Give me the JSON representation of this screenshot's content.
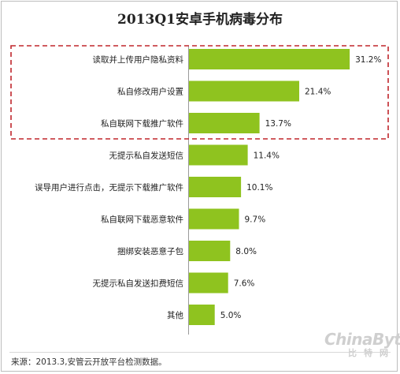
{
  "chart_data": {
    "type": "bar",
    "orientation": "horizontal",
    "title": "2013Q1安卓手机病毒分布",
    "categories": [
      "读取并上传用户隐私资料",
      "私自修改用户设置",
      "私自联网下载推广软件",
      "无提示私自发送短信",
      "误导用户进行点击，无提示下载推广软件",
      "私自联网下载恶意软件",
      "捆绑安装恶意子包",
      "无提示私自发送扣费短信",
      "其他"
    ],
    "values": [
      31.2,
      21.4,
      13.7,
      11.4,
      10.1,
      9.7,
      8.0,
      7.6,
      5.0
    ],
    "value_labels": [
      "31.2%",
      "21.4%",
      "13.7%",
      "11.4%",
      "10.1%",
      "9.7%",
      "8.0%",
      "7.6%",
      "5.0%"
    ],
    "xlim": [
      0,
      35
    ],
    "grid": false,
    "bar_color": "#8fc31f",
    "highlight_border_color": "#c0262c",
    "highlighted_count": 3
  },
  "source": "来源：2013.3,安管云开放平台检测数据。",
  "watermark": {
    "line1": "ChinaByte",
    "line2": "比特网"
  }
}
